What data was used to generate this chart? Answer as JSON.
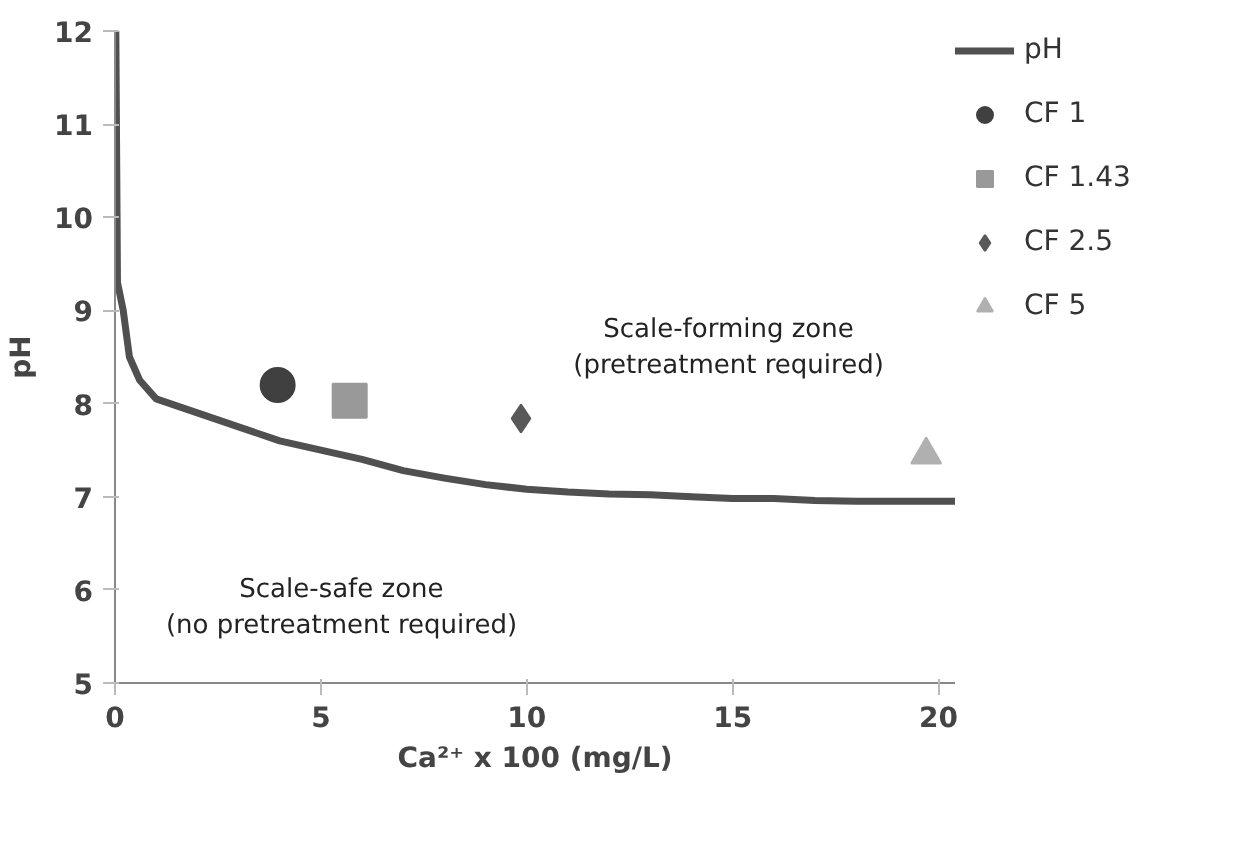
{
  "chart_data": {
    "type": "scatter",
    "xlabel": "Ca²⁺ x 100 (mg/L)",
    "ylabel": "pH",
    "xlim": [
      0,
      20.4
    ],
    "xticks": [
      0,
      5,
      10,
      15,
      20
    ],
    "ylim": [
      5,
      12
    ],
    "yticks": [
      5,
      6,
      7,
      8,
      9,
      10,
      11,
      12
    ],
    "grid": false,
    "legend": "right",
    "annotations": [
      "Scale-forming zone\n(pretreatment required)",
      "Scale-safe zone\n(no pretreatment required)"
    ],
    "series": [
      {
        "name": "pH",
        "type": "line",
        "color": "#505050",
        "marker": "none",
        "line_style": "solid",
        "x": [
          0.02,
          0.05,
          0.06,
          0.2,
          0.35,
          0.6,
          1,
          2,
          3,
          4,
          5,
          6,
          7,
          8,
          9,
          10,
          11,
          12,
          13,
          14,
          15,
          16,
          17,
          18,
          20.4
        ],
        "values": [
          12,
          10,
          9.3,
          9.0,
          8.5,
          8.25,
          8.05,
          7.9,
          7.75,
          7.6,
          7.5,
          7.4,
          7.28,
          7.2,
          7.13,
          7.08,
          7.05,
          7.03,
          7.02,
          7.0,
          6.98,
          6.98,
          6.96,
          6.95,
          6.95
        ]
      },
      {
        "name": "CF 1",
        "color": "#404040",
        "marker": "circle",
        "x": [
          3.95
        ],
        "values": [
          8.2
        ]
      },
      {
        "name": "CF 1.43",
        "color": "#999999",
        "marker": "square",
        "x": [
          5.7
        ],
        "values": [
          8.03
        ]
      },
      {
        "name": "CF 2.5",
        "color": "#595959",
        "marker": "diamond",
        "x": [
          9.86
        ],
        "values": [
          7.84
        ]
      },
      {
        "name": "CF 5",
        "color": "#b0b0b0",
        "marker": "triangle",
        "x": [
          19.7
        ],
        "values": [
          7.45
        ]
      }
    ]
  }
}
